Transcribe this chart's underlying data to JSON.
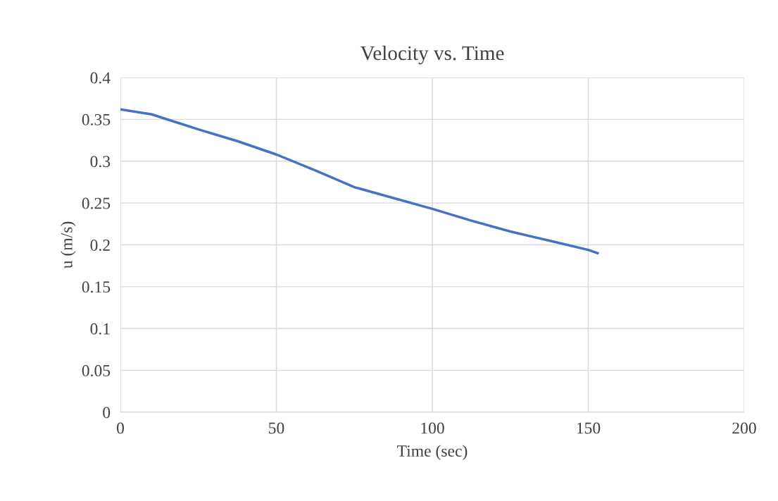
{
  "chart_data": {
    "type": "line",
    "title": "Velocity vs. Time",
    "xlabel": "Time (sec)",
    "ylabel": "u (m/s)",
    "series": [
      {
        "color": "#4472c4",
        "x": [
          0,
          10,
          25,
          37.5,
          50,
          62.5,
          75,
          87.5,
          100,
          112.5,
          125,
          137.5,
          150,
          153
        ],
        "values": [
          0.362,
          0.356,
          0.338,
          0.324,
          0.308,
          0.289,
          0.269,
          0.256,
          0.243,
          0.229,
          0.216,
          0.205,
          0.194,
          0.19
        ]
      }
    ],
    "xlim": [
      0,
      200
    ],
    "xticks": [
      0,
      50,
      100,
      150,
      200
    ],
    "ylim": [
      0,
      0.4
    ],
    "yticks": [
      0,
      {
        "value": 0.05,
        "label": "0.05"
      },
      {
        "value": 0.1,
        "label": "0.1"
      },
      {
        "value": 0.15,
        "label": "0.15"
      },
      {
        "value": 0.2,
        "label": "0.2"
      },
      {
        "value": 0.25,
        "label": "0.25"
      },
      {
        "value": 0.3,
        "label": "0.3"
      },
      {
        "value": 0.35,
        "label": "0.35"
      },
      {
        "value": 0.4,
        "label": "0.4"
      }
    ],
    "grid": true,
    "legend": false,
    "marker": "none",
    "line_style": "solid"
  }
}
